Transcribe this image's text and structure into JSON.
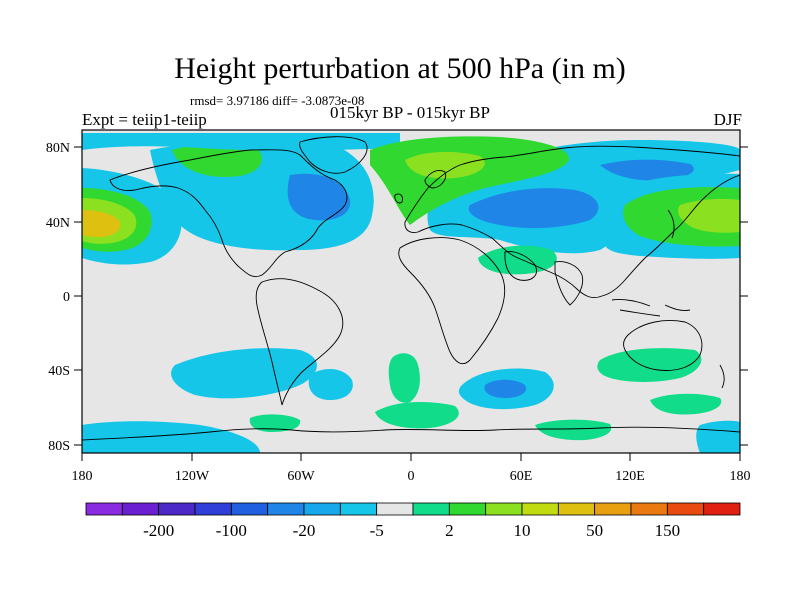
{
  "title": "Height perturbation at 500 hPa (in m)",
  "stats_line": "rmsd= 3.97186 diff= -3.0873e-08",
  "left_label": "Expt = teiip1-teiip",
  "center_label": "015kyr BP - 015kyr BP",
  "right_label": "DJF",
  "lat_ticks": [
    "80N",
    "40N",
    "0",
    "40S",
    "80S"
  ],
  "lon_ticks": [
    "180",
    "120W",
    "60W",
    "0",
    "60E",
    "120E",
    "180"
  ],
  "colorbar": {
    "colors": [
      "#8a2be2",
      "#6a1fd0",
      "#4d29c8",
      "#2f3fd8",
      "#1f5fe0",
      "#1f86e8",
      "#16a8ea",
      "#15c6e8",
      "#e6e6e6",
      "#10dc8a",
      "#30d830",
      "#8be020",
      "#c0dc10",
      "#ddc010",
      "#e8a010",
      "#ea7a10",
      "#e84a10",
      "#e02010"
    ],
    "labels": [
      "-200",
      "-100",
      "-20",
      "-5",
      "2",
      "10",
      "50",
      "150"
    ],
    "label_after_box": [
      1,
      3,
      5,
      7,
      9,
      11,
      13,
      15
    ]
  },
  "anomaly_colors": {
    "background": "#e6e6e6",
    "light_blue": "#15c6e8",
    "mid_blue": "#1f86e8",
    "green": "#30d830",
    "aqua_green": "#10dc8a",
    "lime": "#8be020",
    "yellow": "#ddc010"
  }
}
